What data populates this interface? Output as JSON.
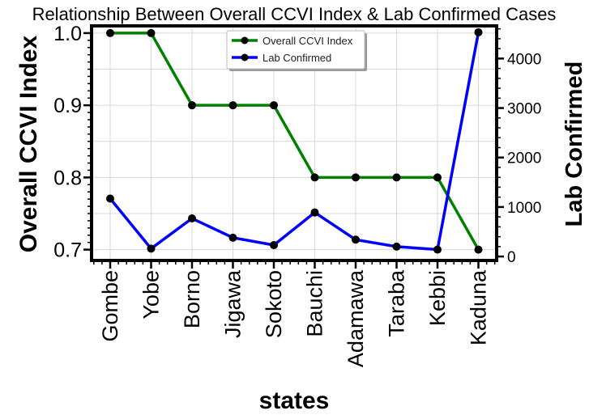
{
  "chart_data": {
    "type": "line",
    "title": "Relationship Between Overall CCVI Index & Lab Confirmed Cases",
    "xlabel": "states",
    "ylabel_left": "Overall CCVI Index",
    "ylabel_right": "Lab Confirmed",
    "categories": [
      "Gombe",
      "Yobe",
      "Borno",
      "Jigawa",
      "Sokoto",
      "Bauchi",
      "Adamawa",
      "Taraba",
      "Kebbi",
      "Kaduna"
    ],
    "y_left_lim": [
      0.685,
      1.01
    ],
    "y_left_ticks": [
      "0.7",
      "0.8",
      "0.9",
      "1.0"
    ],
    "y_right_lim": [
      -80,
      4660
    ],
    "y_right_ticks": [
      "0",
      "1000",
      "2000",
      "3000",
      "4000"
    ],
    "grid": true,
    "legend_position": "top-center",
    "series": [
      {
        "name": "Overall CCVI Index",
        "axis": "left",
        "color": "#008000",
        "values": [
          1.0,
          1.0,
          0.9,
          0.9,
          0.9,
          0.8,
          0.8,
          0.8,
          0.8,
          0.7
        ]
      },
      {
        "name": "Lab Confirmed",
        "axis": "right",
        "color": "#0000ff",
        "values": [
          1170,
          160,
          770,
          380,
          230,
          890,
          340,
          200,
          140,
          4530
        ]
      }
    ]
  }
}
